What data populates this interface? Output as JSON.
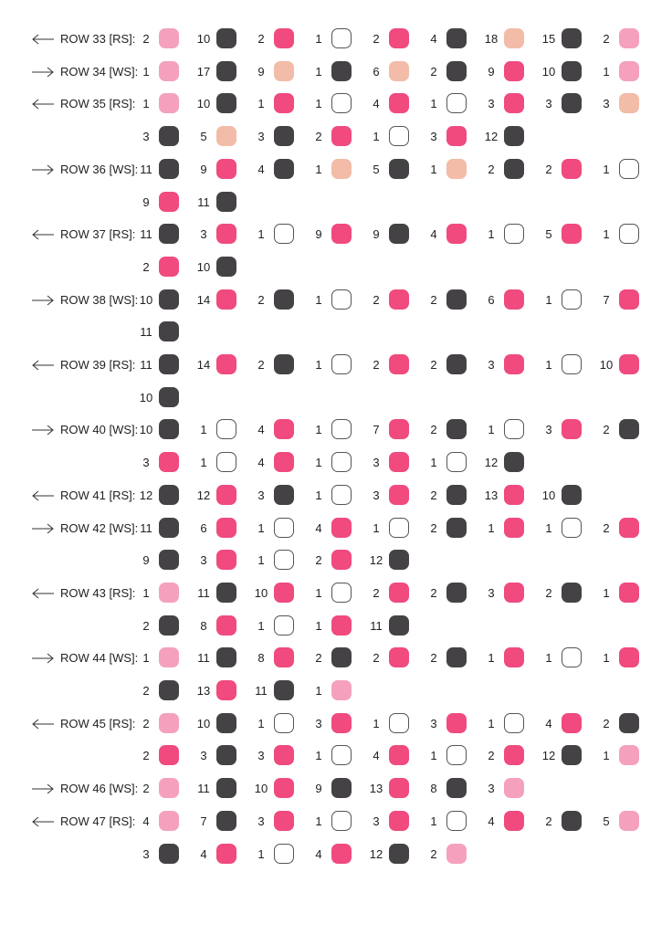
{
  "colors": {
    "dark": "#454245",
    "hot": "#f04a7e",
    "pink": "#f5a1be",
    "peach": "#f2bca8",
    "white": "#ffffff"
  },
  "rows": [
    {
      "label": "ROW 33 [RS]:",
      "dir": "left",
      "lines": [
        [
          [
            2,
            "pink"
          ],
          [
            10,
            "dark"
          ],
          [
            2,
            "hot"
          ],
          [
            1,
            "white"
          ],
          [
            2,
            "hot"
          ],
          [
            4,
            "dark"
          ],
          [
            18,
            "peach"
          ],
          [
            15,
            "dark"
          ],
          [
            2,
            "pink"
          ]
        ]
      ]
    },
    {
      "label": "ROW 34 [WS]:",
      "dir": "right",
      "lines": [
        [
          [
            1,
            "pink"
          ],
          [
            17,
            "dark"
          ],
          [
            9,
            "peach"
          ],
          [
            1,
            "dark"
          ],
          [
            6,
            "peach"
          ],
          [
            2,
            "dark"
          ],
          [
            9,
            "hot"
          ],
          [
            10,
            "dark"
          ],
          [
            1,
            "pink"
          ]
        ]
      ]
    },
    {
      "label": "ROW 35 [RS]:",
      "dir": "left",
      "lines": [
        [
          [
            1,
            "pink"
          ],
          [
            10,
            "dark"
          ],
          [
            1,
            "hot"
          ],
          [
            1,
            "white"
          ],
          [
            4,
            "hot"
          ],
          [
            1,
            "white"
          ],
          [
            3,
            "hot"
          ],
          [
            3,
            "dark"
          ],
          [
            3,
            "peach"
          ]
        ],
        [
          [
            3,
            "dark"
          ],
          [
            5,
            "peach"
          ],
          [
            3,
            "dark"
          ],
          [
            2,
            "hot"
          ],
          [
            1,
            "white"
          ],
          [
            3,
            "hot"
          ],
          [
            12,
            "dark"
          ]
        ]
      ]
    },
    {
      "label": "ROW 36 [WS]:",
      "dir": "right",
      "lines": [
        [
          [
            11,
            "dark"
          ],
          [
            9,
            "hot"
          ],
          [
            4,
            "dark"
          ],
          [
            1,
            "peach"
          ],
          [
            5,
            "dark"
          ],
          [
            1,
            "peach"
          ],
          [
            2,
            "dark"
          ],
          [
            2,
            "hot"
          ],
          [
            1,
            "white"
          ]
        ],
        [
          [
            9,
            "hot"
          ],
          [
            11,
            "dark"
          ]
        ]
      ]
    },
    {
      "label": "ROW 37 [RS]:",
      "dir": "left",
      "lines": [
        [
          [
            11,
            "dark"
          ],
          [
            3,
            "hot"
          ],
          [
            1,
            "white"
          ],
          [
            9,
            "hot"
          ],
          [
            9,
            "dark"
          ],
          [
            4,
            "hot"
          ],
          [
            1,
            "white"
          ],
          [
            5,
            "hot"
          ],
          [
            1,
            "white"
          ]
        ],
        [
          [
            2,
            "hot"
          ],
          [
            10,
            "dark"
          ]
        ]
      ]
    },
    {
      "label": "ROW 38 [WS]:",
      "dir": "right",
      "lines": [
        [
          [
            10,
            "dark"
          ],
          [
            14,
            "hot"
          ],
          [
            2,
            "dark"
          ],
          [
            1,
            "white"
          ],
          [
            2,
            "hot"
          ],
          [
            2,
            "dark"
          ],
          [
            6,
            "hot"
          ],
          [
            1,
            "white"
          ],
          [
            7,
            "hot"
          ]
        ],
        [
          [
            11,
            "dark"
          ]
        ]
      ]
    },
    {
      "label": "ROW 39 [RS]:",
      "dir": "left",
      "lines": [
        [
          [
            11,
            "dark"
          ],
          [
            14,
            "hot"
          ],
          [
            2,
            "dark"
          ],
          [
            1,
            "white"
          ],
          [
            2,
            "hot"
          ],
          [
            2,
            "dark"
          ],
          [
            3,
            "hot"
          ],
          [
            1,
            "white"
          ],
          [
            10,
            "hot"
          ]
        ],
        [
          [
            10,
            "dark"
          ]
        ]
      ]
    },
    {
      "label": "ROW 40 [WS]:",
      "dir": "right",
      "lines": [
        [
          [
            10,
            "dark"
          ],
          [
            1,
            "white"
          ],
          [
            4,
            "hot"
          ],
          [
            1,
            "white"
          ],
          [
            7,
            "hot"
          ],
          [
            2,
            "dark"
          ],
          [
            1,
            "white"
          ],
          [
            3,
            "hot"
          ],
          [
            2,
            "dark"
          ]
        ],
        [
          [
            3,
            "hot"
          ],
          [
            1,
            "white"
          ],
          [
            4,
            "hot"
          ],
          [
            1,
            "white"
          ],
          [
            3,
            "hot"
          ],
          [
            1,
            "white"
          ],
          [
            12,
            "dark"
          ]
        ]
      ]
    },
    {
      "label": "ROW 41 [RS]:",
      "dir": "left",
      "lines": [
        [
          [
            12,
            "dark"
          ],
          [
            12,
            "hot"
          ],
          [
            3,
            "dark"
          ],
          [
            1,
            "white"
          ],
          [
            3,
            "hot"
          ],
          [
            2,
            "dark"
          ],
          [
            13,
            "hot"
          ],
          [
            10,
            "dark"
          ]
        ]
      ]
    },
    {
      "label": "ROW 42 [WS]:",
      "dir": "right",
      "lines": [
        [
          [
            11,
            "dark"
          ],
          [
            6,
            "hot"
          ],
          [
            1,
            "white"
          ],
          [
            4,
            "hot"
          ],
          [
            1,
            "white"
          ],
          [
            2,
            "dark"
          ],
          [
            1,
            "hot"
          ],
          [
            1,
            "white"
          ],
          [
            2,
            "hot"
          ]
        ],
        [
          [
            9,
            "dark"
          ],
          [
            3,
            "hot"
          ],
          [
            1,
            "white"
          ],
          [
            2,
            "hot"
          ],
          [
            12,
            "dark"
          ]
        ]
      ]
    },
    {
      "label": "ROW 43 [RS]:",
      "dir": "left",
      "lines": [
        [
          [
            1,
            "pink"
          ],
          [
            11,
            "dark"
          ],
          [
            10,
            "hot"
          ],
          [
            1,
            "white"
          ],
          [
            2,
            "hot"
          ],
          [
            2,
            "dark"
          ],
          [
            3,
            "hot"
          ],
          [
            2,
            "dark"
          ],
          [
            1,
            "hot"
          ]
        ],
        [
          [
            2,
            "dark"
          ],
          [
            8,
            "hot"
          ],
          [
            1,
            "white"
          ],
          [
            1,
            "hot"
          ],
          [
            11,
            "dark"
          ]
        ]
      ]
    },
    {
      "label": "ROW 44 [WS]:",
      "dir": "right",
      "lines": [
        [
          [
            1,
            "pink"
          ],
          [
            11,
            "dark"
          ],
          [
            8,
            "hot"
          ],
          [
            2,
            "dark"
          ],
          [
            2,
            "hot"
          ],
          [
            2,
            "dark"
          ],
          [
            1,
            "hot"
          ],
          [
            1,
            "white"
          ],
          [
            1,
            "hot"
          ]
        ],
        [
          [
            2,
            "dark"
          ],
          [
            13,
            "hot"
          ],
          [
            11,
            "dark"
          ],
          [
            1,
            "pink"
          ]
        ]
      ]
    },
    {
      "label": "ROW 45 [RS]:",
      "dir": "left",
      "lines": [
        [
          [
            2,
            "pink"
          ],
          [
            10,
            "dark"
          ],
          [
            1,
            "white"
          ],
          [
            3,
            "hot"
          ],
          [
            1,
            "white"
          ],
          [
            3,
            "hot"
          ],
          [
            1,
            "white"
          ],
          [
            4,
            "hot"
          ],
          [
            2,
            "dark"
          ]
        ],
        [
          [
            2,
            "hot"
          ],
          [
            3,
            "dark"
          ],
          [
            3,
            "hot"
          ],
          [
            1,
            "white"
          ],
          [
            4,
            "hot"
          ],
          [
            1,
            "white"
          ],
          [
            2,
            "hot"
          ],
          [
            12,
            "dark"
          ],
          [
            1,
            "pink"
          ]
        ]
      ]
    },
    {
      "label": "ROW 46 [WS]:",
      "dir": "right",
      "lines": [
        [
          [
            2,
            "pink"
          ],
          [
            11,
            "dark"
          ],
          [
            10,
            "hot"
          ],
          [
            9,
            "dark"
          ],
          [
            13,
            "hot"
          ],
          [
            8,
            "dark"
          ],
          [
            3,
            "pink"
          ]
        ]
      ]
    },
    {
      "label": "ROW 47 [RS]:",
      "dir": "left",
      "lines": [
        [
          [
            4,
            "pink"
          ],
          [
            7,
            "dark"
          ],
          [
            3,
            "hot"
          ],
          [
            1,
            "white"
          ],
          [
            3,
            "hot"
          ],
          [
            1,
            "white"
          ],
          [
            4,
            "hot"
          ],
          [
            2,
            "dark"
          ],
          [
            5,
            "pink"
          ]
        ],
        [
          [
            3,
            "dark"
          ],
          [
            4,
            "hot"
          ],
          [
            1,
            "white"
          ],
          [
            4,
            "hot"
          ],
          [
            12,
            "dark"
          ],
          [
            2,
            "pink"
          ]
        ]
      ]
    }
  ]
}
